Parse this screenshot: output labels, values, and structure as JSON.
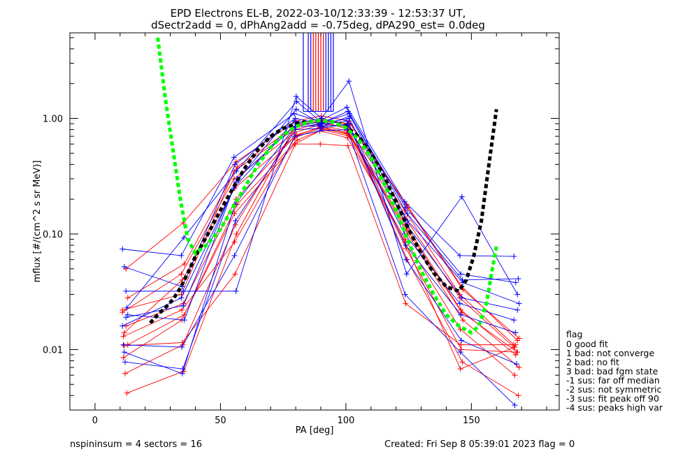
{
  "chart_data": {
    "type": "line",
    "title": "EPD Electrons EL-B, 2022-03-10/12:33:39 - 12:53:37 UT,",
    "subtitle": "dSectr2add = 0, dPhAng2add = -0.75deg, dPA290_est=   0.0deg",
    "xlabel": "PA [deg]",
    "ylabel": "mflux [#/(cm^2 s sr MeV)]",
    "xlim": [
      -10,
      185
    ],
    "ylim": [
      0.003,
      5.5
    ],
    "yscale": "log",
    "x_ticks": [
      0,
      50,
      100,
      150
    ],
    "x_tick_labels": [
      "0",
      "50",
      "100",
      "150"
    ],
    "y_ticks": [
      0.01,
      0.1,
      1.0
    ],
    "y_tick_labels": [
      "0.01",
      "0.10",
      "1.00"
    ],
    "grid": false,
    "legend_position": "right-bottom",
    "legend": {
      "title": "flag",
      "entries": [
        "0 good fit",
        "1 bad: not converge",
        "2 bad: no fit",
        "3 bad: bad fgm state",
        "-1 sus: far off median",
        "-2 sus: not symmetric",
        "-3 sus: fit peak off 90",
        "-4 sus: peaks high var"
      ]
    },
    "footer_left": "nspininsum =  4  sectors = 16",
    "footer_right": "Created: Fri Sep  8 05:39:01 2023   flag = 0",
    "colors": {
      "red_series": "#ff0000",
      "blue_series": "#0000ff",
      "green_fit": "#00ff00",
      "black_fit": "#000000"
    },
    "pa_bins": [
      12,
      35,
      56,
      80,
      90,
      101,
      124,
      146,
      168
    ],
    "series_red": [
      [
        0.022,
        0.03,
        0.35,
        0.8,
        0.9,
        0.85,
        0.16,
        0.03,
        0.011
      ],
      [
        0.014,
        0.04,
        0.25,
        0.7,
        0.85,
        0.75,
        0.12,
        0.022,
        0.009
      ],
      [
        0.05,
        0.125,
        0.42,
        0.95,
        1.05,
        0.95,
        0.18,
        0.035,
        0.012
      ],
      [
        0.011,
        0.02,
        0.18,
        0.65,
        0.8,
        0.7,
        0.1,
        0.018,
        0.007
      ],
      [
        0.0085,
        0.018,
        0.15,
        0.6,
        0.78,
        0.68,
        0.09,
        0.015,
        0.006
      ],
      [
        0.0062,
        0.011,
        0.12,
        0.85,
        0.95,
        0.8,
        0.075,
        0.01,
        0.0095
      ],
      [
        0.0042,
        0.0065,
        0.1,
        0.9,
        1.0,
        0.88,
        0.06,
        0.0078,
        0.004
      ],
      [
        0.021,
        0.045,
        0.3,
        0.75,
        0.88,
        0.78,
        0.14,
        0.028,
        0.0105
      ],
      [
        0.0108,
        0.0115,
        0.045,
        0.6,
        0.6,
        0.58,
        0.025,
        0.011,
        0.011
      ],
      [
        0.016,
        0.025,
        0.2,
        0.72,
        0.84,
        0.72,
        0.11,
        0.021,
        0.0095
      ],
      [
        0.028,
        0.055,
        0.38,
        0.88,
        0.96,
        0.9,
        0.17,
        0.033,
        0.0125
      ],
      [
        0.013,
        0.022,
        0.085,
        0.68,
        0.82,
        0.74,
        0.085,
        0.0068,
        0.0105
      ]
    ],
    "series_blue": [
      [
        0.074,
        0.065,
        0.46,
        1.1,
        0.95,
        1.25,
        0.19,
        0.065,
        0.064
      ],
      [
        0.052,
        0.035,
        0.4,
        1.0,
        0.9,
        1.15,
        0.17,
        0.045,
        0.038
      ],
      [
        0.032,
        0.032,
        0.032,
        1.55,
        1.0,
        2.1,
        0.045,
        0.21,
        0.03
      ],
      [
        0.02,
        0.018,
        0.3,
        0.9,
        0.85,
        1.05,
        0.13,
        0.038,
        0.025
      ],
      [
        0.011,
        0.0105,
        0.065,
        0.7,
        0.78,
        0.8,
        0.03,
        0.0095,
        0.0033
      ],
      [
        0.0078,
        0.0068,
        0.13,
        0.8,
        0.82,
        0.9,
        0.06,
        0.012,
        0.0075
      ],
      [
        0.023,
        0.093,
        0.35,
        1.4,
        0.92,
        1.1,
        0.15,
        0.04,
        0.041
      ],
      [
        0.016,
        0.028,
        0.25,
        0.95,
        0.88,
        0.95,
        0.1,
        0.025,
        0.018
      ],
      [
        0.0095,
        0.0062,
        0.18,
        0.85,
        0.86,
        0.88,
        0.08,
        0.02,
        0.014
      ],
      [
        0.019,
        0.024,
        0.28,
        1.2,
        0.9,
        1.0,
        0.12,
        0.028,
        0.022
      ]
    ],
    "fit_green": {
      "x": [
        25,
        28,
        31,
        34,
        37,
        40,
        45,
        50,
        55,
        60,
        65,
        70,
        75,
        80,
        85,
        90,
        95,
        100,
        105,
        110,
        115,
        120,
        125,
        130,
        135,
        140,
        145,
        150,
        153,
        156,
        158,
        160
      ],
      "y": [
        5.0,
        1.5,
        0.55,
        0.2,
        0.09,
        0.068,
        0.082,
        0.11,
        0.17,
        0.26,
        0.4,
        0.56,
        0.72,
        0.85,
        0.93,
        0.96,
        0.93,
        0.83,
        0.66,
        0.46,
        0.28,
        0.16,
        0.085,
        0.048,
        0.03,
        0.02,
        0.016,
        0.014,
        0.016,
        0.025,
        0.045,
        0.078
      ]
    },
    "fit_black": {
      "x": [
        22,
        25,
        28,
        31,
        34,
        37,
        40,
        45,
        50,
        55,
        60,
        65,
        70,
        75,
        80,
        85,
        90,
        95,
        100,
        105,
        110,
        115,
        120,
        125,
        130,
        135,
        140,
        145,
        148,
        151,
        154,
        157,
        160
      ],
      "y": [
        0.017,
        0.02,
        0.023,
        0.027,
        0.034,
        0.046,
        0.064,
        0.1,
        0.16,
        0.25,
        0.38,
        0.54,
        0.7,
        0.82,
        0.9,
        0.94,
        0.95,
        0.93,
        0.85,
        0.7,
        0.5,
        0.32,
        0.19,
        0.11,
        0.068,
        0.046,
        0.035,
        0.032,
        0.04,
        0.065,
        0.13,
        0.4,
        1.2
      ]
    }
  }
}
